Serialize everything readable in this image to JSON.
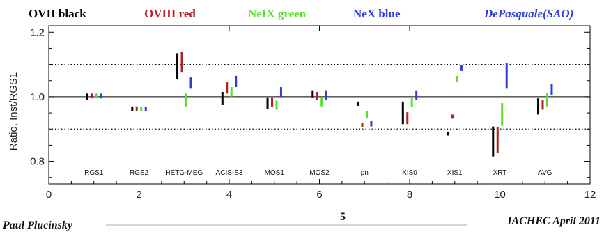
{
  "legend": [
    {
      "label": "OVII black",
      "color": "#000000"
    },
    {
      "label": "OVIII red",
      "color": "#b22222"
    },
    {
      "label": "NeIX green",
      "color": "#55e030"
    },
    {
      "label": "NeX blue",
      "color": "#2d3fd6"
    }
  ],
  "credit": "DePasquale(SAO)",
  "footer": {
    "author": "Paul Plucinsky",
    "page": "5",
    "event": "IACHEC April 2011"
  },
  "chart_data": {
    "type": "error-bar",
    "xlabel": "",
    "ylabel": "Ratio, Inst/RGS1",
    "xlim": [
      0,
      12
    ],
    "ylim": [
      0.73,
      1.22
    ],
    "xticks": [
      0,
      2,
      4,
      6,
      8,
      10,
      12
    ],
    "yticks": [
      0.8,
      1.0,
      1.2
    ],
    "ytick_labels": [
      "0.8",
      "1.0",
      "1.2"
    ],
    "reference_lines": [
      {
        "y": 1.0,
        "style": "solid"
      },
      {
        "y": 1.1,
        "style": "dotted"
      },
      {
        "y": 0.9,
        "style": "dotted"
      }
    ],
    "categories": [
      "RGS1",
      "RGS2",
      "HETG-MEG",
      "ACIS-S3",
      "MOS1",
      "MOS2",
      "pn",
      "XIS0",
      "XIS1",
      "XRT",
      "AVG"
    ],
    "category_x": [
      1,
      2,
      3,
      4,
      5,
      6,
      7,
      8,
      9,
      10,
      11
    ],
    "series": [
      {
        "name": "OVII",
        "color": "#000000",
        "x_offset": -0.15,
        "ranges": [
          [
            0.99,
            1.01
          ],
          [
            0.955,
            0.97
          ],
          [
            1.055,
            1.135
          ],
          [
            0.975,
            1.015
          ],
          [
            0.962,
            0.998
          ],
          [
            0.998,
            1.02
          ],
          [
            0.972,
            0.985
          ],
          [
            0.915,
            0.985
          ],
          [
            0.88,
            0.892
          ],
          [
            0.815,
            0.908
          ],
          [
            0.945,
            0.995
          ]
        ]
      },
      {
        "name": "OVIII",
        "color": "#b22222",
        "x_offset": -0.05,
        "ranges": [
          [
            0.995,
            1.01
          ],
          [
            0.955,
            0.97
          ],
          [
            1.075,
            1.14
          ],
          [
            1.01,
            1.045
          ],
          [
            0.968,
            0.998
          ],
          [
            0.99,
            1.015
          ],
          [
            0.905,
            0.918
          ],
          [
            0.915,
            0.952
          ],
          [
            0.932,
            0.945
          ],
          [
            0.825,
            0.905
          ],
          [
            0.96,
            0.99
          ]
        ]
      },
      {
        "name": "NeIX",
        "color": "#55e030",
        "x_offset": 0.05,
        "ranges": [
          [
            0.995,
            1.01
          ],
          [
            0.955,
            0.97
          ],
          [
            0.97,
            1.01
          ],
          [
            1.0,
            1.03
          ],
          [
            0.96,
            0.988
          ],
          [
            0.97,
            0.998
          ],
          [
            0.935,
            0.955
          ],
          [
            0.968,
            0.995
          ],
          [
            1.045,
            1.065
          ],
          [
            0.91,
            0.98
          ],
          [
            0.97,
            1.01
          ]
        ]
      },
      {
        "name": "NeX",
        "color": "#2d3fd6",
        "x_offset": 0.15,
        "ranges": [
          [
            0.995,
            1.01
          ],
          [
            0.955,
            0.97
          ],
          [
            1.025,
            1.06
          ],
          [
            1.03,
            1.065
          ],
          [
            1.0,
            1.03
          ],
          [
            0.99,
            1.02
          ],
          [
            0.908,
            0.925
          ],
          [
            0.99,
            1.02
          ],
          [
            1.08,
            1.098
          ],
          [
            1.025,
            1.105
          ],
          [
            1.005,
            1.04
          ]
        ]
      }
    ]
  }
}
